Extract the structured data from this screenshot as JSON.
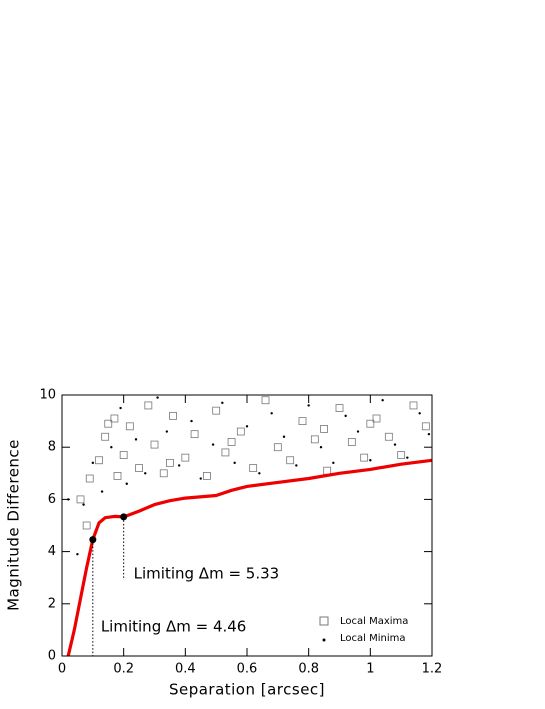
{
  "chart_data": {
    "type": "scatter",
    "x_label": "Separation  [arcsec]",
    "y_label": "Magnitude Difference",
    "xlim": [
      0,
      1.2
    ],
    "ylim": [
      0,
      10
    ],
    "xticks": [
      0,
      0.2,
      0.4,
      0.6,
      0.8,
      1,
      1.2
    ],
    "yticks": [
      0,
      2,
      4,
      6,
      8,
      10
    ],
    "legend_position": "lower right",
    "series": [
      {
        "name": "Local Maxima",
        "marker": "square",
        "color": "#777777",
        "x": [
          0.06,
          0.08,
          0.09,
          0.12,
          0.14,
          0.15,
          0.17,
          0.18,
          0.2,
          0.22,
          0.25,
          0.28,
          0.3,
          0.33,
          0.36,
          0.4,
          0.43,
          0.47,
          0.5,
          0.53,
          0.58,
          0.62,
          0.66,
          0.7,
          0.74,
          0.78,
          0.82,
          0.86,
          0.9,
          0.94,
          0.98,
          1.02,
          1.06,
          1.1,
          1.14,
          1.18,
          0.55,
          0.85,
          1.0,
          0.35
        ],
        "y": [
          6.0,
          5.0,
          6.8,
          7.5,
          8.4,
          8.9,
          9.1,
          6.9,
          7.7,
          8.8,
          7.2,
          9.6,
          8.1,
          7.0,
          9.2,
          7.6,
          8.5,
          6.9,
          9.4,
          7.8,
          8.6,
          7.2,
          9.8,
          8.0,
          7.5,
          9.0,
          8.3,
          7.1,
          9.5,
          8.2,
          7.6,
          9.1,
          8.4,
          7.7,
          9.6,
          8.8,
          8.2,
          8.7,
          8.9,
          7.4
        ]
      },
      {
        "name": "Local Minima",
        "marker": "dot",
        "color": "#000000",
        "x": [
          0.02,
          0.05,
          0.07,
          0.1,
          0.13,
          0.16,
          0.19,
          0.21,
          0.24,
          0.27,
          0.31,
          0.34,
          0.38,
          0.42,
          0.45,
          0.49,
          0.52,
          0.56,
          0.6,
          0.64,
          0.68,
          0.72,
          0.76,
          0.8,
          0.84,
          0.88,
          0.92,
          0.96,
          1.0,
          1.04,
          1.08,
          1.12,
          1.16,
          1.19
        ],
        "y": [
          6.0,
          3.9,
          5.8,
          7.4,
          6.3,
          8.0,
          9.5,
          6.6,
          8.3,
          7.0,
          9.9,
          8.6,
          7.3,
          9.0,
          6.8,
          8.1,
          9.7,
          7.4,
          8.8,
          7.0,
          9.3,
          8.4,
          7.3,
          9.6,
          8.0,
          7.4,
          9.2,
          8.6,
          7.5,
          9.8,
          8.1,
          7.6,
          9.3,
          8.5
        ]
      },
      {
        "marker": "line",
        "color": "#ee0000",
        "x": [
          0.02,
          0.04,
          0.06,
          0.08,
          0.1,
          0.12,
          0.14,
          0.17,
          0.2,
          0.25,
          0.3,
          0.35,
          0.4,
          0.5,
          0.55,
          0.6,
          0.7,
          0.8,
          0.9,
          1.0,
          1.1,
          1.2
        ],
        "y": [
          0,
          1,
          2.2,
          3.4,
          4.46,
          5.1,
          5.3,
          5.35,
          5.33,
          5.55,
          5.8,
          5.95,
          6.05,
          6.15,
          6.35,
          6.5,
          6.65,
          6.8,
          7.0,
          7.15,
          7.35,
          7.5
        ]
      }
    ],
    "annotations": [
      {
        "text": "Limiting Δm = 5.33",
        "x": 0.2,
        "y": 5.33
      },
      {
        "text": "Limiting Δm = 4.46",
        "x": 0.1,
        "y": 4.46
      }
    ]
  }
}
